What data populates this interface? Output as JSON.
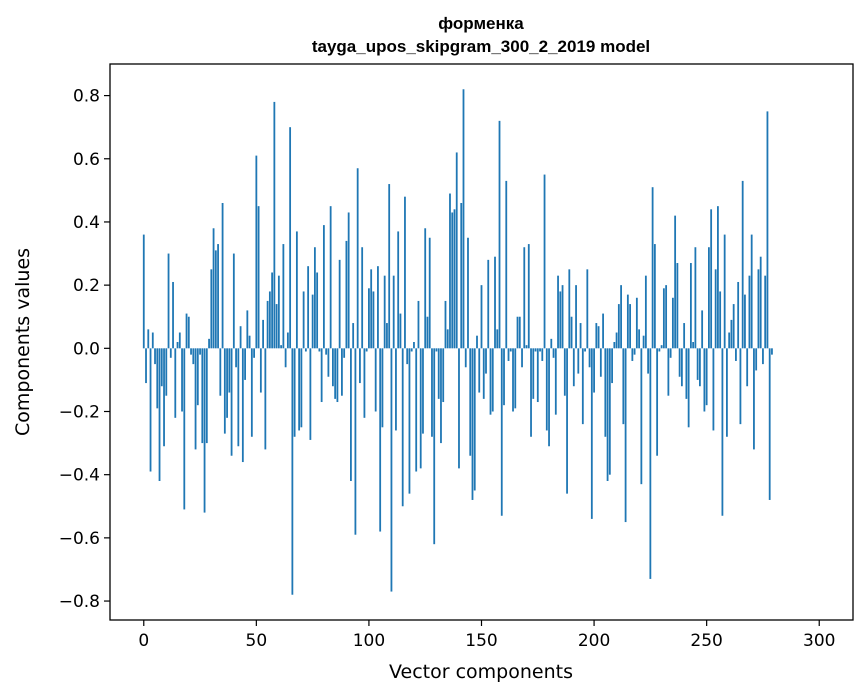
{
  "chart_data": {
    "type": "bar",
    "title": "форменка",
    "subtitle": "tayga_upos_skipgram_300_2_2019 model",
    "xlabel": "Vector components",
    "ylabel": "Components values",
    "xlim": [
      -15,
      315
    ],
    "ylim": [
      -0.86,
      0.9
    ],
    "xticks": [
      0,
      50,
      100,
      150,
      200,
      250,
      300
    ],
    "xtick_labels": [
      "0",
      "50",
      "100",
      "150",
      "200",
      "250",
      "300"
    ],
    "yticks": [
      -0.8,
      -0.6,
      -0.4,
      -0.2,
      0.0,
      0.2,
      0.4,
      0.6,
      0.8
    ],
    "ytick_labels": [
      "−0.8",
      "−0.6",
      "−0.4",
      "−0.2",
      "0.0",
      "0.2",
      "0.4",
      "0.6",
      "0.8"
    ],
    "bar_color": "#1f77b4",
    "grid": false,
    "values": [
      0.36,
      -0.11,
      0.06,
      -0.39,
      0.05,
      -0.05,
      -0.19,
      -0.42,
      -0.12,
      -0.31,
      -0.15,
      0.3,
      -0.03,
      0.21,
      -0.22,
      0.02,
      0.05,
      -0.2,
      -0.51,
      0.11,
      0.1,
      -0.02,
      -0.05,
      -0.32,
      -0.18,
      -0.02,
      -0.3,
      -0.52,
      -0.3,
      0.03,
      0.25,
      0.38,
      0.31,
      0.33,
      -0.15,
      0.46,
      -0.27,
      -0.22,
      -0.14,
      -0.34,
      0.3,
      -0.06,
      -0.31,
      0.07,
      -0.36,
      -0.1,
      0.12,
      0.04,
      -0.28,
      -0.03,
      0.61,
      0.45,
      -0.14,
      0.09,
      -0.32,
      0.15,
      0.18,
      0.24,
      0.78,
      0.14,
      0.23,
      0.01,
      0.33,
      -0.06,
      0.05,
      0.7,
      -0.78,
      -0.28,
      0.37,
      -0.26,
      -0.25,
      0.18,
      -0.01,
      0.26,
      -0.29,
      0.17,
      0.32,
      0.24,
      -0.01,
      -0.17,
      0.39,
      -0.02,
      -0.09,
      0.45,
      -0.12,
      -0.16,
      -0.17,
      0.28,
      -0.15,
      -0.03,
      0.34,
      0.43,
      -0.42,
      0.08,
      -0.59,
      0.57,
      -0.11,
      0.32,
      -0.22,
      -0.01,
      0.19,
      0.25,
      0.18,
      -0.2,
      0.26,
      -0.58,
      -0.25,
      0.23,
      0.08,
      0.52,
      -0.77,
      0.23,
      -0.26,
      0.37,
      0.11,
      -0.5,
      0.48,
      -0.05,
      -0.46,
      -0.01,
      0.02,
      -0.39,
      0.15,
      -0.38,
      -0.27,
      0.38,
      0.1,
      0.35,
      -0.28,
      -0.62,
      -0.01,
      -0.16,
      -0.3,
      -0.17,
      0.15,
      0.06,
      0.49,
      0.43,
      0.44,
      0.62,
      -0.38,
      0.46,
      0.82,
      -0.06,
      0.35,
      -0.34,
      -0.48,
      -0.45,
      0.04,
      -0.14,
      0.2,
      -0.16,
      -0.08,
      0.28,
      -0.21,
      -0.2,
      0.29,
      0.06,
      0.72,
      -0.53,
      -0.18,
      0.53,
      -0.04,
      -0.01,
      -0.2,
      -0.19,
      0.1,
      0.1,
      -0.06,
      0.32,
      0.01,
      0.33,
      -0.28,
      -0.16,
      -0.01,
      -0.17,
      -0.01,
      -0.04,
      0.55,
      -0.26,
      -0.31,
      0.03,
      -0.03,
      -0.21,
      0.23,
      0.18,
      0.2,
      -0.15,
      -0.46,
      0.25,
      0.1,
      -0.12,
      0.2,
      -0.08,
      0.08,
      -0.24,
      -0.01,
      0.25,
      -0.06,
      -0.54,
      -0.14,
      0.08,
      0.07,
      -0.09,
      0.11,
      -0.28,
      -0.42,
      -0.4,
      -0.11,
      0.02,
      0.05,
      0.14,
      0.2,
      -0.24,
      -0.55,
      0.17,
      0.14,
      -0.04,
      -0.02,
      0.16,
      0.06,
      -0.43,
      0.04,
      0.23,
      -0.08,
      -0.73,
      0.51,
      0.33,
      -0.34,
      -0.01,
      0.01,
      0.19,
      0.2,
      -0.15,
      -0.03,
      0.16,
      0.42,
      0.27,
      -0.09,
      -0.12,
      0.08,
      -0.16,
      -0.25,
      0.27,
      0.02,
      0.32,
      -0.1,
      -0.12,
      0.12,
      -0.2,
      -0.18,
      0.32,
      0.44,
      -0.26,
      0.25,
      0.45,
      0.18,
      -0.53,
      0.36,
      -0.28,
      0.05,
      0.09,
      0.14,
      -0.04,
      0.21,
      -0.24,
      0.53,
      0.17,
      -0.12,
      0.23,
      0.36,
      -0.32,
      -0.07,
      0.25,
      0.29,
      -0.05,
      0.23,
      0.75,
      -0.48,
      -0.02
    ]
  }
}
